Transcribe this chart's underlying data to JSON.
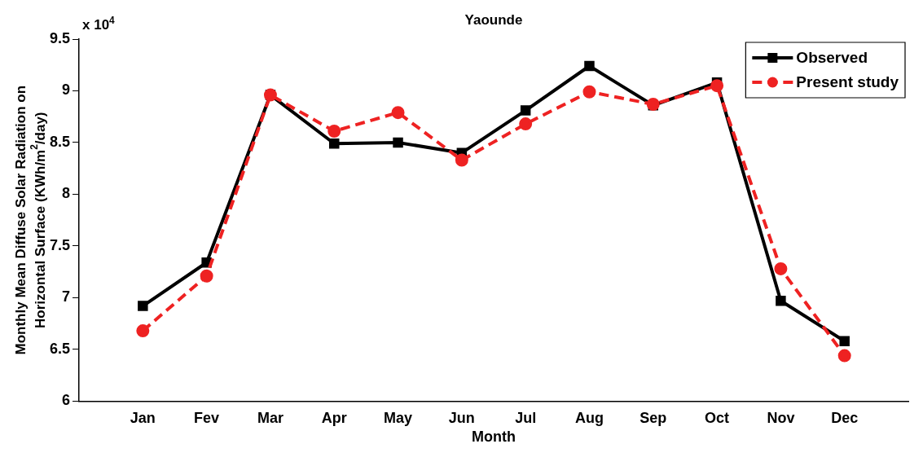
{
  "chart_data": {
    "type": "line",
    "title": "Yaounde",
    "xlabel": "Month",
    "ylabel": "Monthly Mean Diffuse Solar Radiation on Horizontal Surface (KWh/m$^{2}$/day)",
    "annotations": [
      "x 10$^{4}$"
    ],
    "categories": [
      "Jan",
      "Fev",
      "Mar",
      "Apr",
      "May",
      "Jun",
      "Jul",
      "Aug",
      "Sep",
      "Oct",
      "Nov",
      "Dec"
    ],
    "series": [
      {
        "name": "Observed",
        "color": "#000000",
        "marker": "square",
        "line_style": "solid",
        "values": [
          6.92,
          7.34,
          8.96,
          8.49,
          8.5,
          8.4,
          8.81,
          9.24,
          8.86,
          9.08,
          6.97,
          6.58
        ]
      },
      {
        "name": "Present study",
        "color": "#ee2222",
        "marker": "circle",
        "line_style": "dashed",
        "values": [
          6.68,
          7.21,
          8.96,
          8.61,
          8.79,
          8.33,
          8.68,
          8.99,
          8.87,
          9.05,
          7.28,
          6.44
        ]
      }
    ],
    "ylim": [
      6,
      9.5
    ],
    "yticks": [
      6,
      6.5,
      7,
      7.5,
      8,
      8.5,
      9,
      9.5
    ],
    "grid": false,
    "legend": "top right"
  }
}
